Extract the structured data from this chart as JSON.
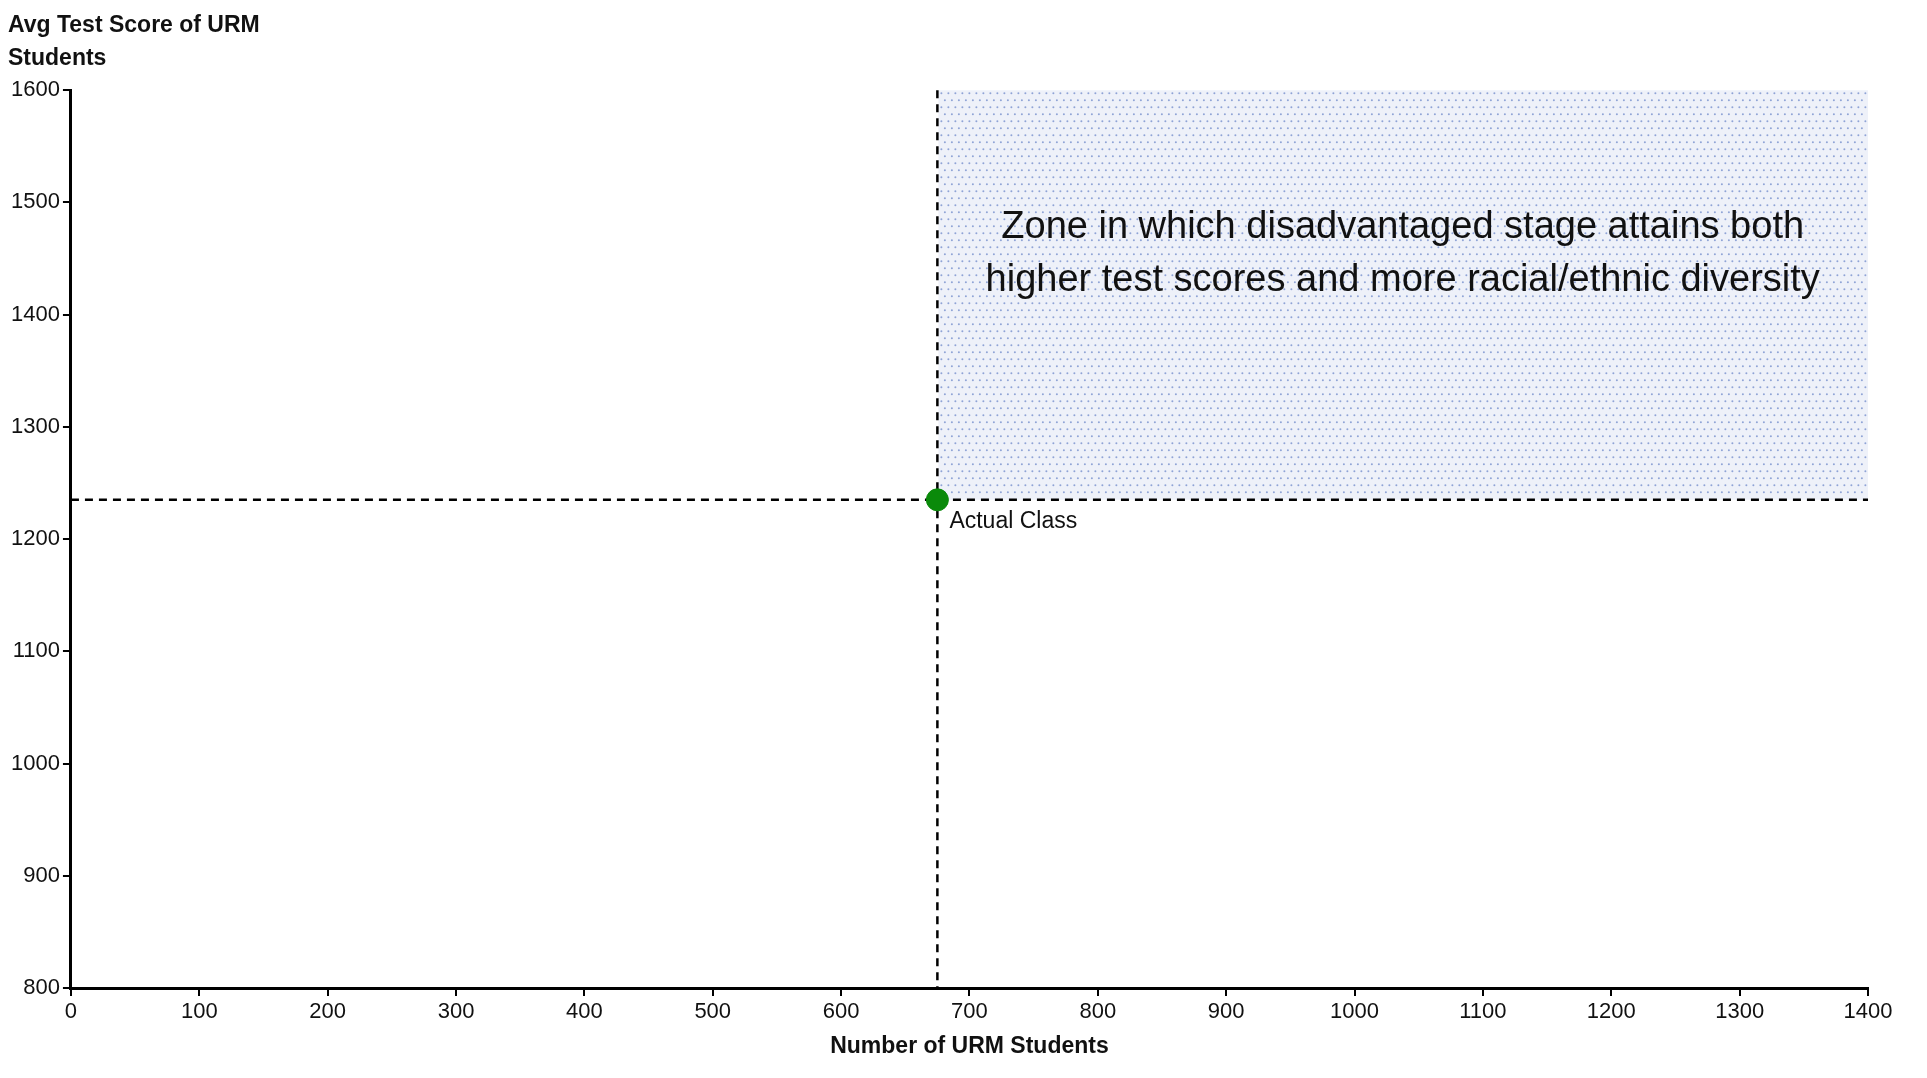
{
  "chart_data": {
    "type": "scatter",
    "xlabel": "Number of URM Students",
    "ylabel": "Avg Test Score of URM Students",
    "x": [
      675
    ],
    "series": [
      {
        "color": "#0a8a0a",
        "values": [
          1235
        ]
      }
    ],
    "xlim": [
      0,
      1400
    ],
    "xticks": [
      0,
      100,
      200,
      300,
      400,
      500,
      600,
      700,
      800,
      900,
      1000,
      1100,
      1200,
      1300,
      1400
    ],
    "ylim": [
      800,
      1600
    ],
    "yticks": [
      800,
      900,
      1000,
      1100,
      1200,
      1300,
      1400,
      1500,
      1600
    ],
    "grid": false,
    "legend": false,
    "marker": "circle",
    "ref_lines": [
      {
        "axis": "x",
        "value": 675,
        "line_style": "dashed",
        "color": "#000000"
      },
      {
        "axis": "y",
        "value": 1235,
        "line_style": "dashed",
        "color": "#000000"
      }
    ],
    "bands": [
      {
        "axis": "y",
        "from": 1235,
        "to": 1600,
        "color": "#8fa3d6",
        "label": "Zone in which disadvantaged stage attains both higher test scores and more racial/ethnic diversity"
      }
    ],
    "annotations": [
      {
        "text": "Actual Class",
        "x": 675,
        "y": 1235
      }
    ]
  }
}
